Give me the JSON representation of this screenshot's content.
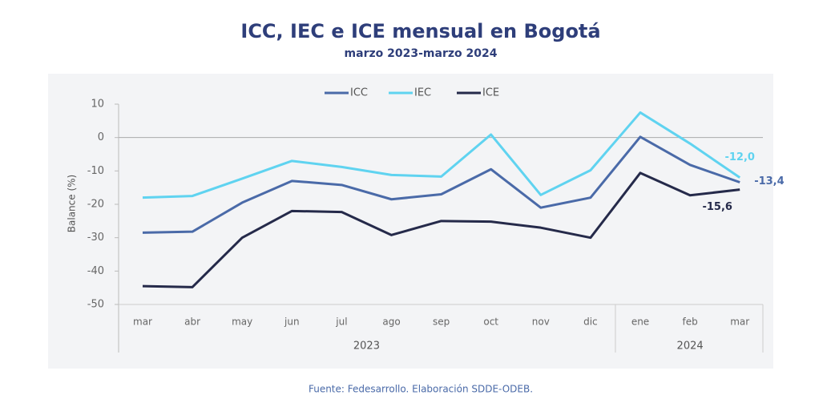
{
  "chart_data": {
    "type": "line",
    "title": "ICC, IEC e ICE mensual en Bogotá",
    "subtitle": "marzo 2023-marzo 2024",
    "y_label": "Balance (%)",
    "source": "Fuente: Fedesarrollo. Elaboración SDDE-ODEB.",
    "groups": [
      {
        "label": "2023",
        "categories": [
          "mar",
          "abr",
          "may",
          "jun",
          "jul",
          "ago",
          "sep",
          "oct",
          "nov",
          "dic"
        ]
      },
      {
        "label": "2024",
        "categories": [
          "ene",
          "feb",
          "mar"
        ]
      }
    ],
    "ylim": [
      -50,
      10
    ],
    "yticks": [
      10,
      0,
      -10,
      -20,
      -30,
      -40,
      -50
    ],
    "grid": false,
    "legend": "top",
    "series": [
      {
        "name": "ICC",
        "color": "#4a6aa8",
        "values": [
          -28.5,
          -28.2,
          -19.5,
          -13,
          -14.2,
          -18.5,
          -17,
          -9.5,
          -21,
          -18,
          0.2,
          -8.2,
          -13.4
        ],
        "value_labels": [
          null,
          null,
          null,
          null,
          null,
          null,
          null,
          null,
          null,
          null,
          null,
          null,
          "-13,4"
        ]
      },
      {
        "name": "IEC",
        "color": "#5fd3f0",
        "values": [
          -18,
          -17.5,
          -12.3,
          -7,
          -8.8,
          -11.2,
          -11.7,
          0.9,
          -17.2,
          -9.8,
          7.5,
          -1.8,
          -12.0
        ],
        "value_labels": [
          null,
          null,
          null,
          null,
          null,
          null,
          null,
          null,
          null,
          null,
          null,
          null,
          "-12,0"
        ]
      },
      {
        "name": "ICE",
        "color": "#252a4a",
        "values": [
          -44.5,
          -44.8,
          -30,
          -22,
          -22.3,
          -29.2,
          -25,
          -25.2,
          -27,
          -30,
          -10.6,
          -17.3,
          -15.6
        ],
        "value_labels": [
          null,
          null,
          null,
          null,
          null,
          null,
          null,
          null,
          null,
          null,
          null,
          null,
          "-15,6"
        ]
      }
    ]
  }
}
